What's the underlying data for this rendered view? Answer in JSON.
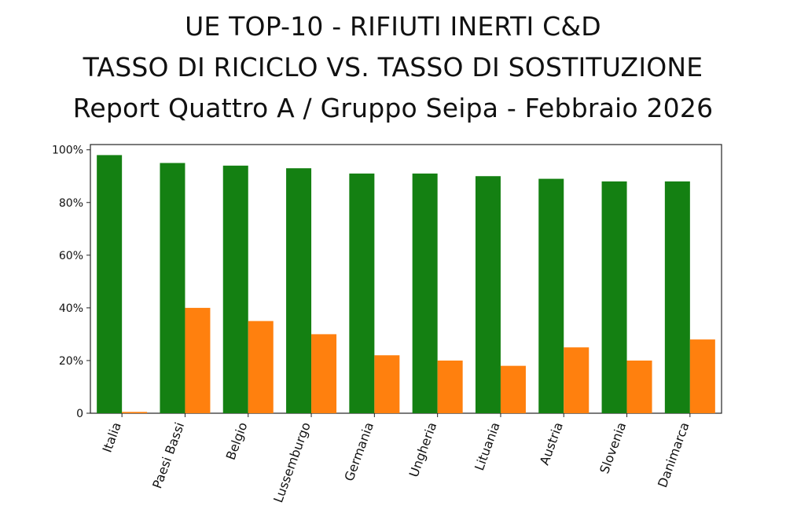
{
  "title": {
    "line1": "UE TOP-10 - RIFIUTI INERTI C&D",
    "line2": "TASSO DI RICICLO VS. TASSO DI SOSTITUZIONE",
    "line3": "Report Quattro A / Gruppo Seipa - Febbraio 2026"
  },
  "colors": {
    "series1": "#148012",
    "series2": "#ff800e"
  },
  "chart_data": {
    "type": "bar",
    "categories": [
      "Italia",
      "Paesi Bassi",
      "Belgio",
      "Lussemburgo",
      "Germania",
      "Ungheria",
      "Lituania",
      "Austria",
      "Slovenia",
      "Danimarca"
    ],
    "series": [
      {
        "values": [
          98,
          95,
          94,
          93,
          91,
          91,
          90,
          89,
          88,
          88
        ]
      },
      {
        "values": [
          0.5,
          40,
          35,
          30,
          22,
          20,
          18,
          25,
          20,
          28
        ]
      }
    ],
    "ylim": [
      0,
      102
    ],
    "yticks": [
      0,
      20,
      40,
      60,
      80,
      100
    ],
    "ytick_labels": [
      "0",
      "20%",
      "40%",
      "60%",
      "80%",
      "100%"
    ],
    "grid": false
  }
}
